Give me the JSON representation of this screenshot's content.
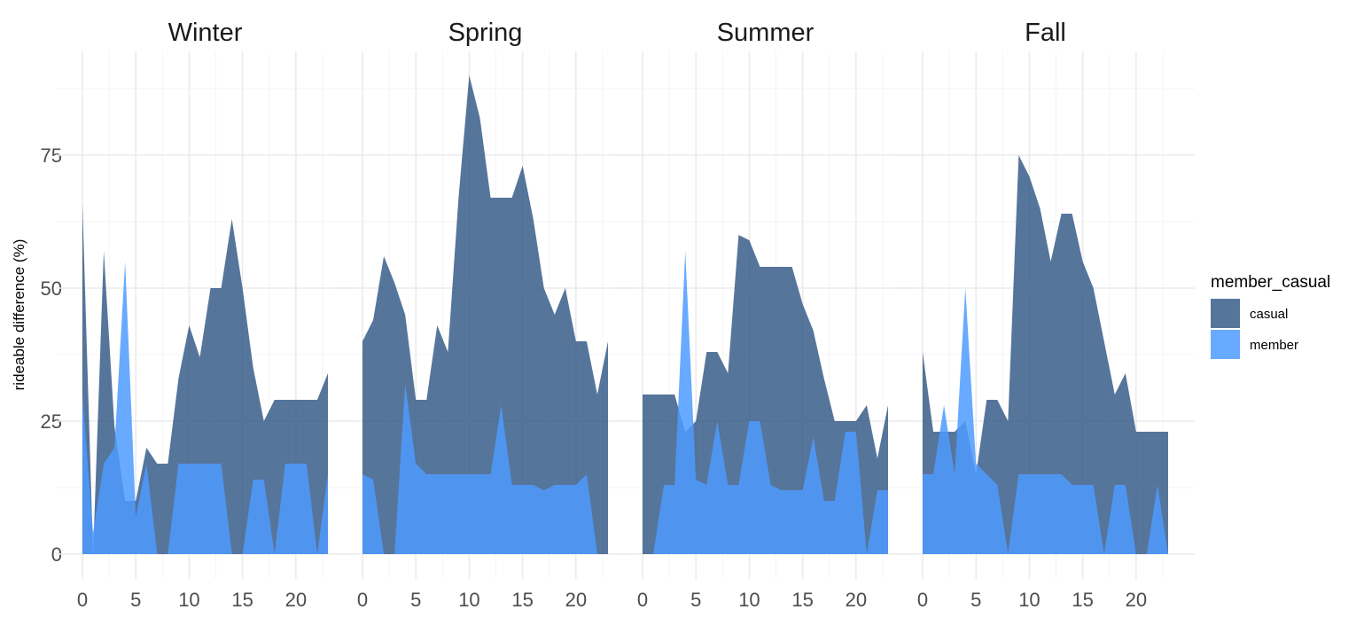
{
  "chart_data": {
    "type": "area",
    "title": "",
    "xlabel": "",
    "ylabel": "rideable difference (%)",
    "xlim": [
      0,
      23
    ],
    "ylim": [
      0,
      90
    ],
    "xticks": [
      0,
      5,
      10,
      15,
      20
    ],
    "yticks": [
      0,
      25,
      50,
      75
    ],
    "grid": true,
    "legend": {
      "title": "member_casual",
      "position": "right",
      "entries": [
        {
          "label": "casual",
          "color": "#2c5282"
        },
        {
          "label": "member",
          "color": "#4d9bff"
        }
      ]
    },
    "colors": {
      "casual": "#2c5282",
      "member": "#4d9bff",
      "grid_major": "#ebebeb",
      "grid_minor": "#f5f5f5"
    },
    "facets": [
      {
        "title": "Winter",
        "x": [
          0,
          1,
          2,
          3,
          4,
          5,
          6,
          7,
          8,
          9,
          10,
          11,
          12,
          13,
          14,
          15,
          16,
          17,
          18,
          19,
          20,
          21,
          22,
          23
        ],
        "series": [
          {
            "name": "casual",
            "values": [
              66,
              0,
              57,
              24,
              10,
              10,
              20,
              17,
              17,
              33,
              43,
              37,
              50,
              50,
              63,
              50,
              35,
              25,
              29,
              29,
              29,
              29,
              29,
              34
            ]
          },
          {
            "name": "member",
            "values": [
              30,
              4,
              17,
              20,
              55,
              7,
              17,
              0,
              0,
              17,
              17,
              17,
              17,
              17,
              0,
              0,
              14,
              14,
              0,
              17,
              17,
              17,
              0,
              15
            ]
          }
        ]
      },
      {
        "title": "Spring",
        "x": [
          0,
          1,
          2,
          3,
          4,
          5,
          6,
          7,
          8,
          9,
          10,
          11,
          12,
          13,
          14,
          15,
          16,
          17,
          18,
          19,
          20,
          21,
          22,
          23
        ],
        "series": [
          {
            "name": "casual",
            "values": [
              40,
              44,
              56,
              51,
              45,
              29,
              29,
              43,
              38,
              67,
              90,
              82,
              67,
              67,
              67,
              73,
              63,
              50,
              45,
              50,
              40,
              40,
              30,
              40
            ]
          },
          {
            "name": "member",
            "values": [
              15,
              14,
              0,
              0,
              32,
              17,
              15,
              15,
              15,
              15,
              15,
              15,
              15,
              28,
              13,
              13,
              13,
              12,
              13,
              13,
              13,
              15,
              0,
              0
            ]
          }
        ]
      },
      {
        "title": "Summer",
        "x": [
          0,
          1,
          2,
          3,
          4,
          5,
          6,
          7,
          8,
          9,
          10,
          11,
          12,
          13,
          14,
          15,
          16,
          17,
          18,
          19,
          20,
          21,
          22,
          23
        ],
        "series": [
          {
            "name": "casual",
            "values": [
              30,
              30,
              30,
              30,
              23,
              25,
              38,
              38,
              34,
              60,
              59,
              54,
              54,
              54,
              54,
              47,
              42,
              33,
              25,
              25,
              25,
              28,
              18,
              28
            ]
          },
          {
            "name": "member",
            "values": [
              0,
              0,
              13,
              13,
              57,
              14,
              13,
              25,
              13,
              13,
              25,
              25,
              13,
              12,
              12,
              12,
              22,
              10,
              10,
              23,
              23,
              0,
              12,
              12
            ]
          }
        ]
      },
      {
        "title": "Fall",
        "x": [
          0,
          1,
          2,
          3,
          4,
          5,
          6,
          7,
          8,
          9,
          10,
          11,
          12,
          13,
          14,
          15,
          16,
          17,
          18,
          19,
          20,
          21,
          22,
          23
        ],
        "series": [
          {
            "name": "casual",
            "values": [
              38,
              23,
              23,
              23,
              25,
              15,
              29,
              29,
              25,
              75,
              71,
              65,
              55,
              64,
              64,
              55,
              50,
              40,
              30,
              34,
              23,
              23,
              23,
              23
            ]
          },
          {
            "name": "member",
            "values": [
              15,
              15,
              28,
              15,
              50,
              17,
              15,
              13,
              0,
              15,
              15,
              15,
              15,
              15,
              13,
              13,
              13,
              0,
              13,
              13,
              0,
              0,
              13,
              0
            ]
          }
        ]
      }
    ]
  }
}
